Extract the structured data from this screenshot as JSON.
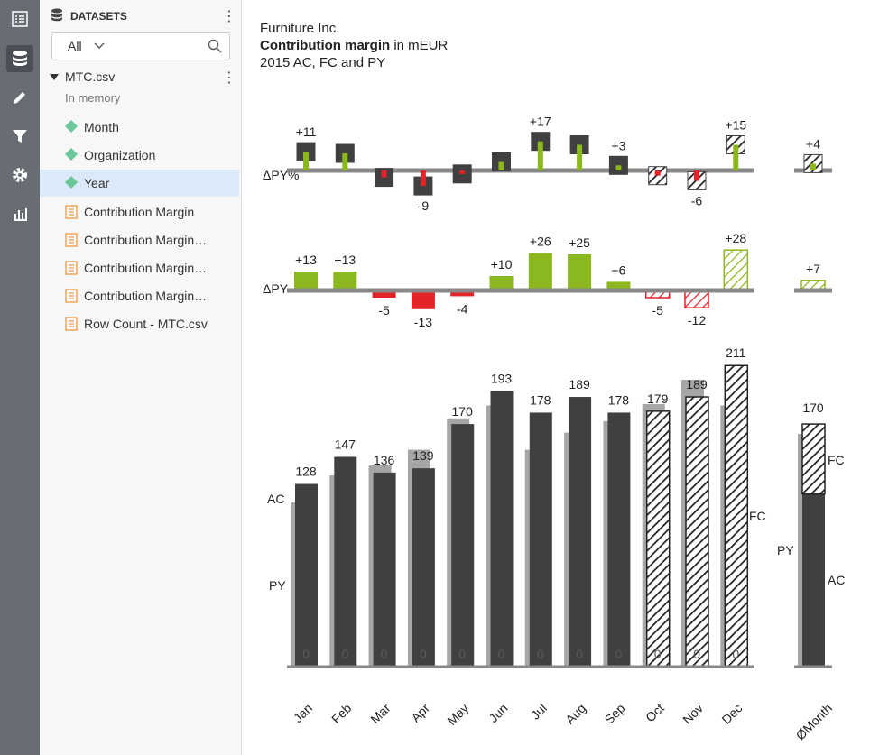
{
  "sidebar": {
    "title": "DATASETS",
    "filter": "All",
    "dataset": "MTC.csv",
    "dataset_note": "In memory",
    "selected_index": 2,
    "fields": [
      {
        "name": "Month",
        "kind": "dimension"
      },
      {
        "name": "Organization",
        "kind": "dimension"
      },
      {
        "name": "Year",
        "kind": "dimension"
      },
      {
        "name": "Contribution Margin",
        "kind": "measure"
      },
      {
        "name": "Contribution Margin…",
        "kind": "measure"
      },
      {
        "name": "Contribution Margin…",
        "kind": "measure"
      },
      {
        "name": "Contribution Margin…",
        "kind": "measure"
      },
      {
        "name": "Row Count - MTC.csv",
        "kind": "measure"
      }
    ]
  },
  "header": {
    "company": "Furniture Inc.",
    "measure": "Contribution margin",
    "unit": "in mEUR",
    "scenario": "2015 AC, FC and PY"
  },
  "chart_data": [
    {
      "type": "pin",
      "label": "ΔPY%",
      "values": [
        11,
        10,
        -4,
        -9,
        -2,
        5,
        17,
        15,
        3,
        -3,
        -6,
        15
      ],
      "value_labels": [
        "+11",
        null,
        null,
        "-9",
        null,
        null,
        "+17",
        null,
        "+3",
        null,
        "-6",
        "+15"
      ],
      "average": {
        "value": 4,
        "value_label": "+4"
      },
      "ylim": [
        -15,
        20
      ],
      "positive_color": "#8cb81f",
      "negative_color": "#e2232a",
      "head_color": "#404040"
    },
    {
      "type": "bar",
      "label": "ΔPY",
      "values": [
        13,
        13,
        -5,
        -13,
        -4,
        10,
        26,
        25,
        6,
        -5,
        -12,
        28
      ],
      "value_labels": [
        "+13",
        "+13",
        "-5",
        "-13",
        "-4",
        "+10",
        "+26",
        "+25",
        "+6",
        "-5",
        "-12",
        "+28"
      ],
      "average": {
        "value": 7,
        "value_label": "+7"
      },
      "ylim": [
        -20,
        30
      ],
      "positive_color": "#8cb81f",
      "negative_color": "#e2232a"
    },
    {
      "type": "overlap-bar",
      "categories": [
        "Jan",
        "Feb",
        "Mar",
        "Apr",
        "May",
        "Jun",
        "Jul",
        "Aug",
        "Sep",
        "Oct",
        "Nov",
        "Dec"
      ],
      "series": [
        {
          "name": "AC",
          "color": "#404040",
          "values": [
            128,
            147,
            136,
            139,
            170,
            193,
            178,
            189,
            178,
            null,
            null,
            null
          ]
        },
        {
          "name": "FC",
          "color": "#222222",
          "values": [
            null,
            null,
            null,
            null,
            null,
            null,
            null,
            null,
            null,
            179,
            189,
            211
          ]
        },
        {
          "name": "PY",
          "color": "#a6a6a6",
          "values": [
            115,
            134,
            141,
            152,
            174,
            183,
            152,
            164,
            172,
            184,
            201,
            183
          ]
        }
      ],
      "zero_labels": [
        0,
        0,
        0,
        0,
        0,
        0,
        0,
        0,
        0,
        0,
        0,
        0
      ],
      "average": {
        "category": "ØMonth",
        "total": 170,
        "AC": 121,
        "FC": 49,
        "PY": 163
      },
      "ylim": [
        0,
        220
      ]
    }
  ]
}
